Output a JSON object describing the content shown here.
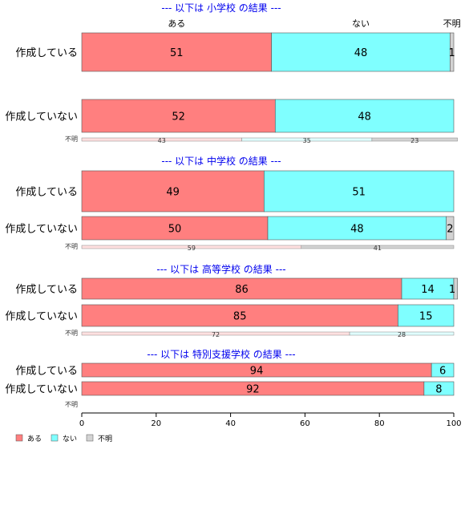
{
  "chart_data": {
    "type": "bar",
    "orientation": "horizontal",
    "stacked": true,
    "percent_scale": true,
    "xlim": [
      0,
      100
    ],
    "xticks": [
      "0",
      "20",
      "40",
      "60",
      "80",
      "100"
    ],
    "grid": false,
    "legend_position": "bottom-left",
    "series": [
      {
        "name": "ある",
        "color": "#FF7F7F"
      },
      {
        "name": "ない",
        "color": "#7FFFFF"
      },
      {
        "name": "不明",
        "color": "#D3D3D3"
      }
    ],
    "category_header": [
      "ある",
      "ない",
      "不明"
    ],
    "panels": [
      {
        "title": "--- 以下は 小学校 の結果 ---",
        "rows": [
          {
            "label": "作成している",
            "values": [
              51,
              48,
              1
            ]
          },
          {
            "label": "作成していない",
            "values": [
              52,
              48,
              0
            ]
          }
        ],
        "unknown": {
          "label": "不明",
          "values": [
            43,
            35,
            23
          ]
        }
      },
      {
        "title": "--- 以下は 中学校 の結果 ---",
        "rows": [
          {
            "label": "作成している",
            "values": [
              49,
              51,
              0
            ]
          },
          {
            "label": "作成していない",
            "values": [
              50,
              48,
              2
            ]
          }
        ],
        "unknown": {
          "label": "不明",
          "values": [
            59,
            0,
            41
          ]
        }
      },
      {
        "title": "--- 以下は 高等学校 の結果 ---",
        "rows": [
          {
            "label": "作成している",
            "values": [
              86,
              14,
              1
            ]
          },
          {
            "label": "作成していない",
            "values": [
              85,
              15,
              0
            ]
          }
        ],
        "unknown": {
          "label": "不明",
          "values": [
            72,
            28,
            0
          ]
        }
      },
      {
        "title": "--- 以下は 特別支援学校 の結果 ---",
        "rows": [
          {
            "label": "作成している",
            "values": [
              94,
              6,
              0
            ]
          },
          {
            "label": "作成していない",
            "values": [
              92,
              8,
              0
            ]
          }
        ],
        "unknown": {
          "label": "不明",
          "values": [
            0,
            0,
            0
          ]
        }
      }
    ]
  }
}
